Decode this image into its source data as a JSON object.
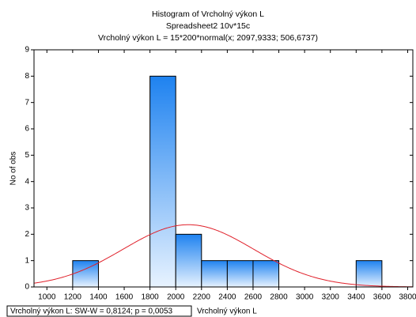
{
  "chart_data": {
    "type": "histogram",
    "title": "Histogram of Vrcholný výkon L",
    "subtitle": "Spreadsheet2 10v*15c",
    "formula": "Vrcholný výkon L = 15*200*normal(x; 2097,9333; 506,6737)",
    "ylabel": "No of obs",
    "xlabel": "Vrcholný výkon L",
    "stats_label": "Vrcholný výkon L:  SW-W = 0,8124; p = 0,0053",
    "bins": [
      1200,
      1400,
      1600,
      1800,
      2000,
      2200,
      2400,
      2600,
      2800,
      3000,
      3200,
      3400,
      3600
    ],
    "values": [
      1,
      0,
      0,
      8,
      2,
      1,
      1,
      1,
      0,
      0,
      0,
      1
    ],
    "color": "#1e82f0",
    "curve": {
      "n": 15,
      "bin_width": 200,
      "mean": 2097.9333,
      "sd": 506.6737,
      "color": "#e0202a"
    },
    "xlim": [
      900,
      3840
    ],
    "xticks": [
      1000,
      1200,
      1400,
      1600,
      1800,
      2000,
      2200,
      2400,
      2600,
      2800,
      3000,
      3200,
      3400,
      3600,
      3800
    ],
    "ylim": [
      0,
      9
    ],
    "yticks": [
      0,
      1,
      2,
      3,
      4,
      5,
      6,
      7,
      8,
      9
    ],
    "grid": false
  }
}
